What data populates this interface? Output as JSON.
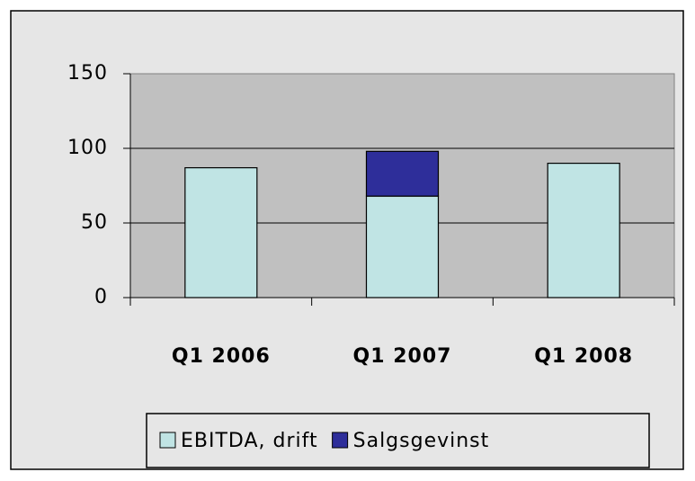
{
  "chart_data": {
    "type": "stacked_bar",
    "categories": [
      "Q1 2006",
      "Q1 2007",
      "Q1 2008"
    ],
    "series": [
      {
        "name": "EBITDA, drift",
        "color": "#c0e4e4",
        "values": [
          87,
          68,
          90
        ]
      },
      {
        "name": "Salgsgevinst",
        "color": "#2e2e9a",
        "values": [
          0,
          30,
          0
        ]
      }
    ],
    "ylim": [
      0,
      150
    ],
    "yticks": [
      0,
      50,
      100,
      150
    ],
    "grid": true,
    "legend": "bottom"
  }
}
